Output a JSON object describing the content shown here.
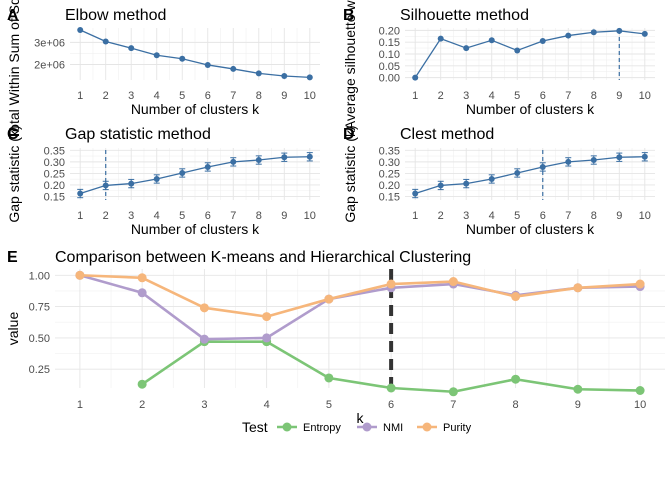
{
  "chart_data": [
    {
      "panel": "A",
      "type": "line",
      "title": "Elbow method",
      "xlabel": "Number of clusters k",
      "ylabel": "Total Within Sum of Square",
      "ylabel_visible": "Total Within Sum of Square",
      "x": [
        1,
        2,
        3,
        4,
        5,
        6,
        7,
        8,
        9,
        10
      ],
      "y": [
        3560000,
        3040000,
        2740000,
        2420000,
        2260000,
        1980000,
        1800000,
        1600000,
        1480000,
        1420000
      ],
      "ylim": [
        1300000,
        3650000
      ],
      "yticks": [
        2000000,
        3000000
      ],
      "ytick_labels": [
        "2e+06",
        "3e+06"
      ],
      "color": "#3b6fa3"
    },
    {
      "panel": "B",
      "type": "line",
      "title": "Silhouette method",
      "xlabel": "Number of clusters k",
      "ylabel": "Average silhouette width",
      "ylabel_visible": "Average silhouette width",
      "x": [
        1,
        2,
        3,
        4,
        5,
        6,
        7,
        8,
        9,
        10
      ],
      "y": [
        0.0,
        0.165,
        0.125,
        0.158,
        0.115,
        0.155,
        0.178,
        0.192,
        0.198,
        0.185
      ],
      "ylim": [
        -0.01,
        0.21
      ],
      "yticks": [
        0.0,
        0.05,
        0.1,
        0.15,
        0.2
      ],
      "ytick_labels": [
        "0.00",
        "0.05",
        "0.10",
        "0.15",
        "0.20"
      ],
      "vline": 9,
      "color": "#3b6fa3"
    },
    {
      "panel": "C",
      "type": "line",
      "title": "Gap statistic method",
      "xlabel": "Number of clusters k",
      "ylabel": "Gap statistic (k)",
      "ylabel_visible": "Gap statistic (k)",
      "x": [
        1,
        2,
        3,
        4,
        5,
        6,
        7,
        8,
        9,
        10
      ],
      "y": [
        0.163,
        0.198,
        0.206,
        0.226,
        0.252,
        0.278,
        0.3,
        0.308,
        0.32,
        0.322
      ],
      "err": [
        0.018,
        0.018,
        0.018,
        0.018,
        0.018,
        0.018,
        0.018,
        0.018,
        0.018,
        0.018
      ],
      "ylim": [
        0.135,
        0.36
      ],
      "yticks": [
        0.15,
        0.2,
        0.25,
        0.3,
        0.35
      ],
      "ytick_labels": [
        "0.15",
        "0.20",
        "0.25",
        "0.30",
        "0.35"
      ],
      "vline": 2,
      "color": "#3b6fa3"
    },
    {
      "panel": "D",
      "type": "line",
      "title": "Clest method",
      "xlabel": "Number of clusters k",
      "ylabel": "Gap statistic (k)",
      "ylabel_visible": "Gap statistic (k)",
      "x": [
        1,
        2,
        3,
        4,
        5,
        6,
        7,
        8,
        9,
        10
      ],
      "y": [
        0.163,
        0.198,
        0.206,
        0.226,
        0.252,
        0.278,
        0.3,
        0.308,
        0.32,
        0.322
      ],
      "err": [
        0.018,
        0.018,
        0.018,
        0.018,
        0.018,
        0.018,
        0.018,
        0.018,
        0.018,
        0.018
      ],
      "ylim": [
        0.135,
        0.36
      ],
      "yticks": [
        0.15,
        0.2,
        0.25,
        0.3,
        0.35
      ],
      "ytick_labels": [
        "0.15",
        "0.20",
        "0.25",
        "0.30",
        "0.35"
      ],
      "vline": 6,
      "color": "#3b6fa3"
    },
    {
      "panel": "E",
      "type": "line",
      "title": "Comparison between K-means and Hierarchical Clustering",
      "xlabel": "k",
      "ylabel": "value",
      "x": [
        1,
        2,
        3,
        4,
        5,
        6,
        7,
        8,
        9,
        10
      ],
      "ylim": [
        0.1,
        1.05
      ],
      "yticks": [
        0.25,
        0.5,
        0.75,
        1.0
      ],
      "ytick_labels": [
        "0.25",
        "0.50",
        "0.75",
        "1.00"
      ],
      "vline": 6,
      "legend_title": "Test",
      "legend_position": "bottom",
      "series": [
        {
          "name": "Entropy",
          "color": "#7cc576",
          "values": [
            null,
            0.13,
            0.47,
            0.47,
            0.18,
            0.1,
            0.07,
            0.17,
            0.09,
            0.08
          ]
        },
        {
          "name": "NMI",
          "color": "#b09ccc",
          "values": [
            1.0,
            0.86,
            0.49,
            0.5,
            0.81,
            0.9,
            0.93,
            0.84,
            0.9,
            0.91
          ]
        },
        {
          "name": "Purity",
          "color": "#f6b67b",
          "values": [
            1.0,
            0.98,
            0.74,
            0.67,
            0.81,
            0.93,
            0.95,
            0.83,
            0.9,
            0.93
          ]
        }
      ]
    }
  ]
}
